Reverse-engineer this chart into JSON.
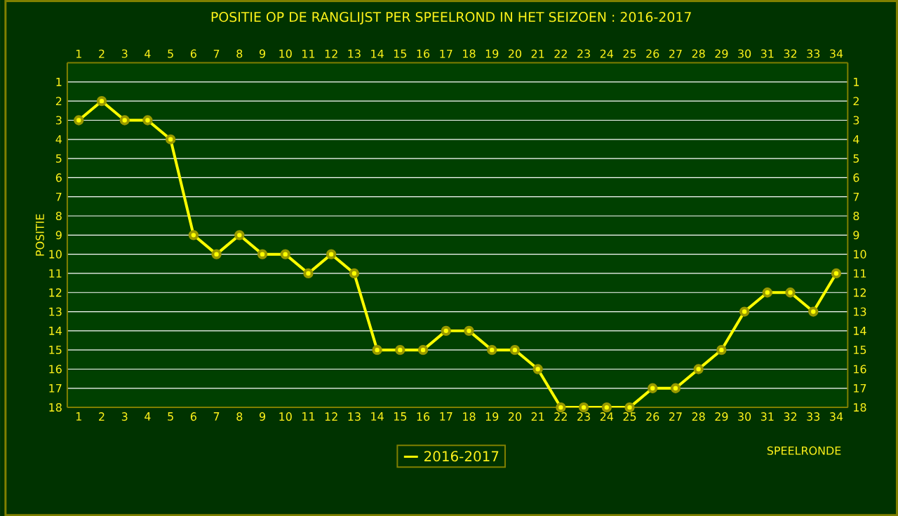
{
  "chart_data": {
    "type": "line",
    "title": "POSITIE OP DE RANGLIJST PER  SPEELROND IN HET SEIZOEN : 2016-2017",
    "xlabel": "SPEELRONDE",
    "ylabel": "POSITIE",
    "x": [
      1,
      2,
      3,
      4,
      5,
      6,
      7,
      8,
      9,
      10,
      11,
      12,
      13,
      14,
      15,
      16,
      17,
      18,
      19,
      20,
      21,
      22,
      23,
      24,
      25,
      26,
      27,
      28,
      29,
      30,
      31,
      32,
      33,
      34
    ],
    "series": [
      {
        "name": "2016-2017",
        "color": "#ffff00",
        "values": [
          3,
          2,
          3,
          3,
          4,
          9,
          10,
          9,
          10,
          10,
          11,
          10,
          11,
          15,
          15,
          15,
          14,
          14,
          15,
          15,
          16,
          18,
          18,
          18,
          18,
          17,
          17,
          16,
          15,
          13,
          12,
          12,
          13,
          11
        ]
      }
    ],
    "xlim": [
      0.5,
      34.5
    ],
    "xticks": [
      1,
      2,
      3,
      4,
      5,
      6,
      7,
      8,
      9,
      10,
      11,
      12,
      13,
      14,
      15,
      16,
      17,
      18,
      19,
      20,
      21,
      22,
      23,
      24,
      25,
      26,
      27,
      28,
      29,
      30,
      31,
      32,
      33,
      34
    ],
    "x2lim": [
      0.5,
      34.5
    ],
    "x2ticks": [
      1,
      2,
      3,
      4,
      5,
      6,
      7,
      8,
      9,
      10,
      11,
      12,
      13,
      14,
      15,
      16,
      17,
      18,
      19,
      20,
      21,
      22,
      23,
      24,
      25,
      26,
      27,
      28,
      29,
      30,
      31,
      32,
      33,
      34
    ],
    "ylim": [
      18,
      0
    ],
    "yticks": [
      1,
      2,
      3,
      4,
      5,
      6,
      7,
      8,
      9,
      10,
      11,
      12,
      13,
      14,
      15,
      16,
      17,
      18
    ],
    "y2lim": [
      18,
      0
    ],
    "y2ticks": [
      1,
      2,
      3,
      4,
      5,
      6,
      7,
      8,
      9,
      10,
      11,
      12,
      13,
      14,
      15,
      16,
      17,
      18
    ],
    "grid": "y",
    "legend": "bottom",
    "marker": "circle",
    "line_style": "solid"
  }
}
